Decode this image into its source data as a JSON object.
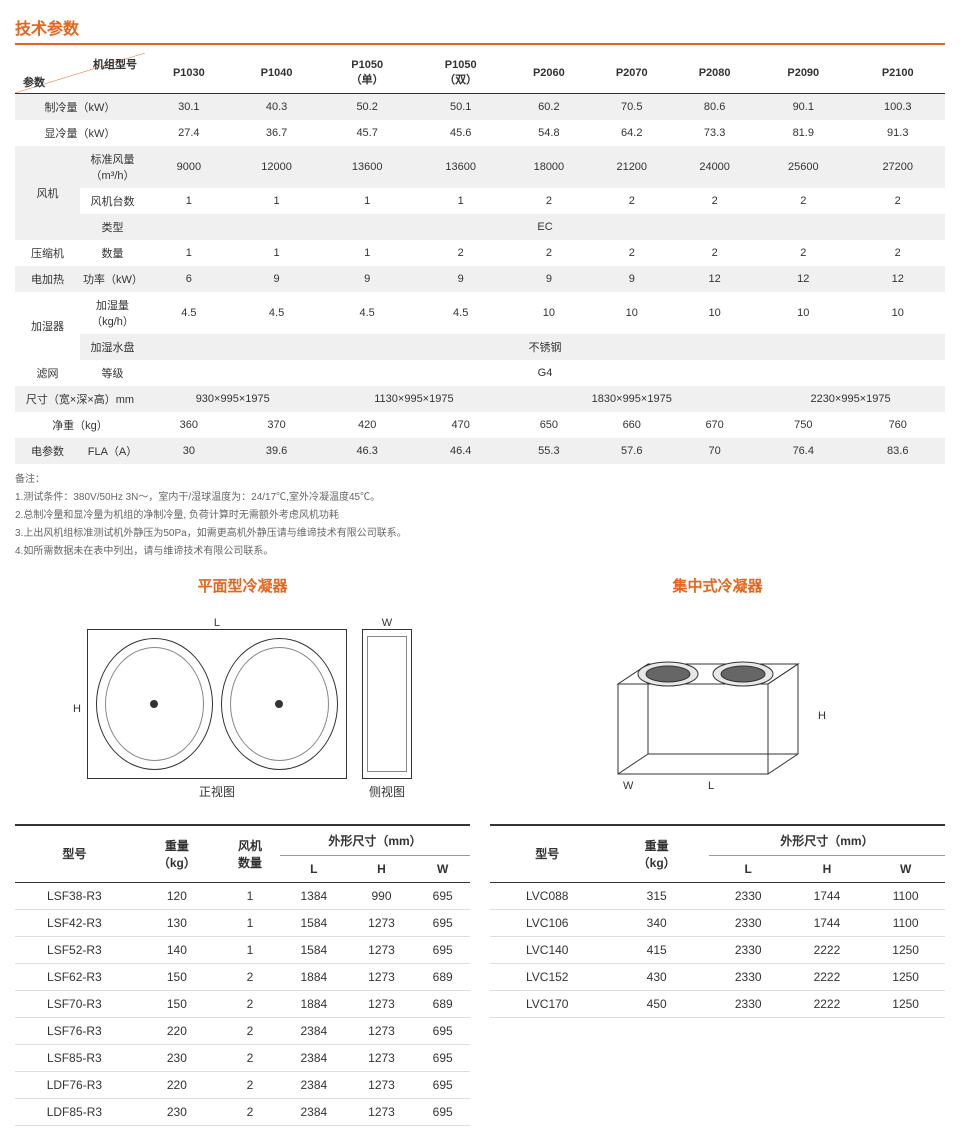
{
  "title": "技术参数",
  "mainTable": {
    "diagTop": "机组型号",
    "diagBottom": "参数",
    "models": [
      "P1030",
      "P1040",
      "P1050\n（单）",
      "P1050\n（双）",
      "P2060",
      "P2070",
      "P2080",
      "P2090",
      "P2100"
    ],
    "rows": [
      {
        "shaded": true,
        "label": "制冷量（kW）",
        "sub": "",
        "values": [
          "30.1",
          "40.3",
          "50.2",
          "50.1",
          "60.2",
          "70.5",
          "80.6",
          "90.1",
          "100.3"
        ]
      },
      {
        "shaded": false,
        "label": "显冷量（kW）",
        "sub": "",
        "values": [
          "27.4",
          "36.7",
          "45.7",
          "45.6",
          "54.8",
          "64.2",
          "73.3",
          "81.9",
          "91.3"
        ]
      },
      {
        "shaded": true,
        "label": "风机",
        "sub": "标准风量\n（m³/h）",
        "values": [
          "9000",
          "12000",
          "13600",
          "13600",
          "18000",
          "21200",
          "24000",
          "25600",
          "27200"
        ],
        "rowspan": 3
      },
      {
        "shaded": false,
        "label": "",
        "sub": "风机台数",
        "values": [
          "1",
          "1",
          "1",
          "1",
          "2",
          "2",
          "2",
          "2",
          "2"
        ]
      },
      {
        "shaded": true,
        "label": "",
        "sub": "类型",
        "span": "EC"
      },
      {
        "shaded": false,
        "label": "压缩机",
        "sub": "数量",
        "values": [
          "1",
          "1",
          "1",
          "2",
          "2",
          "2",
          "2",
          "2",
          "2"
        ]
      },
      {
        "shaded": true,
        "label": "电加热",
        "sub": "功率（kW）",
        "values": [
          "6",
          "9",
          "9",
          "9",
          "9",
          "9",
          "12",
          "12",
          "12"
        ]
      },
      {
        "shaded": false,
        "label": "加湿器",
        "sub": "加湿量\n（kg/h）",
        "values": [
          "4.5",
          "4.5",
          "4.5",
          "4.5",
          "10",
          "10",
          "10",
          "10",
          "10"
        ],
        "rowspan": 2
      },
      {
        "shaded": true,
        "label": "",
        "sub": "加湿水盘",
        "span": "不锈钢"
      },
      {
        "shaded": false,
        "label": "滤网",
        "sub": "等级",
        "span": "G4"
      },
      {
        "shaded": true,
        "label": "尺寸（宽×深×高）mm",
        "sub": "",
        "spanGroups": [
          {
            "text": "930×995×1975",
            "cols": 2
          },
          {
            "text": "1130×995×1975",
            "cols": 2
          },
          {
            "text": "1830×995×1975",
            "cols": 3
          },
          {
            "text": "2230×995×1975",
            "cols": 2
          }
        ]
      },
      {
        "shaded": false,
        "label": "净重（kg）",
        "sub": "",
        "values": [
          "360",
          "370",
          "420",
          "470",
          "650",
          "660",
          "670",
          "750",
          "760"
        ]
      },
      {
        "shaded": true,
        "label": "电参数",
        "sub": "FLA（A）",
        "values": [
          "30",
          "39.6",
          "46.3",
          "46.4",
          "55.3",
          "57.6",
          "70",
          "76.4",
          "83.6"
        ]
      }
    ]
  },
  "notesTitle": "备注：",
  "notes": [
    "1.测试条件：380V/50Hz 3N～，室内干/湿球温度为：24/17℃,室外冷凝温度45℃。",
    "2.总制冷量和显冷量为机组的净制冷量, 负荷计算时无需额外考虑风机功耗",
    "3.上出风机组标准测试机外静压为50Pa，如需更高机外静压请与维谛技术有限公司联系。",
    "4.如所需数据未在表中列出，请与维谛技术有限公司联系。"
  ],
  "flat": {
    "title": "平面型冷凝器",
    "frontView": "正视图",
    "sideView": "侧视图",
    "L": "L",
    "H": "H",
    "W": "W",
    "headers": {
      "model": "型号",
      "weight": "重量\n（kg）",
      "fans": "风机\n数量",
      "dims": "外形尺寸（mm）",
      "L": "L",
      "H": "H",
      "W": "W"
    },
    "rows": [
      {
        "model": "LSF38-R3",
        "weight": "120",
        "fans": "1",
        "L": "1384",
        "H": "990",
        "W": "695"
      },
      {
        "model": "LSF42-R3",
        "weight": "130",
        "fans": "1",
        "L": "1584",
        "H": "1273",
        "W": "695"
      },
      {
        "model": "LSF52-R3",
        "weight": "140",
        "fans": "1",
        "L": "1584",
        "H": "1273",
        "W": "695"
      },
      {
        "model": "LSF62-R3",
        "weight": "150",
        "fans": "2",
        "L": "1884",
        "H": "1273",
        "W": "689"
      },
      {
        "model": "LSF70-R3",
        "weight": "150",
        "fans": "2",
        "L": "1884",
        "H": "1273",
        "W": "689"
      },
      {
        "model": "LSF76-R3",
        "weight": "220",
        "fans": "2",
        "L": "2384",
        "H": "1273",
        "W": "695"
      },
      {
        "model": "LSF85-R3",
        "weight": "230",
        "fans": "2",
        "L": "2384",
        "H": "1273",
        "W": "695"
      },
      {
        "model": "LDF76-R3",
        "weight": "220",
        "fans": "2",
        "L": "2384",
        "H": "1273",
        "W": "695"
      },
      {
        "model": "LDF85-R3",
        "weight": "230",
        "fans": "2",
        "L": "2384",
        "H": "1273",
        "W": "695"
      }
    ]
  },
  "central": {
    "title": "集中式冷凝器",
    "headers": {
      "model": "型号",
      "weight": "重量\n（kg）",
      "dims": "外形尺寸（mm）",
      "L": "L",
      "H": "H",
      "W": "W"
    },
    "rows": [
      {
        "model": "LVC088",
        "weight": "315",
        "L": "2330",
        "H": "1744",
        "W": "1100"
      },
      {
        "model": "LVC106",
        "weight": "340",
        "L": "2330",
        "H": "1744",
        "W": "1100"
      },
      {
        "model": "LVC140",
        "weight": "415",
        "L": "2330",
        "H": "2222",
        "W": "1250"
      },
      {
        "model": "LVC152",
        "weight": "430",
        "L": "2330",
        "H": "2222",
        "W": "1250"
      },
      {
        "model": "LVC170",
        "weight": "450",
        "L": "2330",
        "H": "2222",
        "W": "1250"
      }
    ]
  }
}
